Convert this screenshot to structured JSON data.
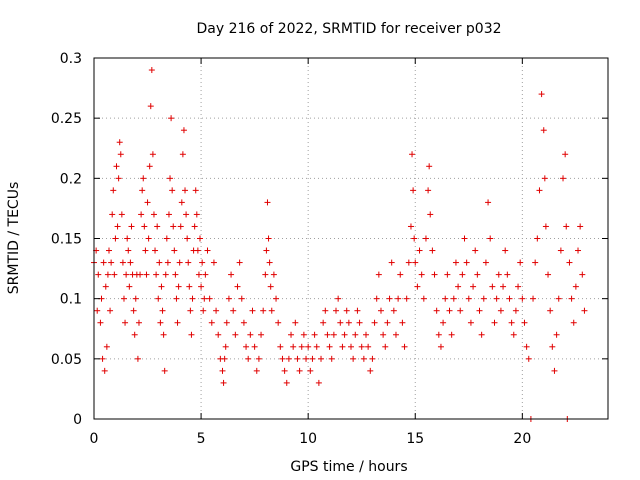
{
  "chart_data": {
    "type": "scatter",
    "title": "Day 216 of 2022, SRMTID for receiver p032",
    "xlabel": "GPS time / hours",
    "ylabel": "SRMTID / TECUs",
    "xlim": [
      0,
      24
    ],
    "ylim": [
      0,
      0.3
    ],
    "xticks": [
      "0",
      "5",
      "10",
      "15",
      "20"
    ],
    "yticks": [
      "0",
      "0.05",
      "0.1",
      "0.15",
      "0.2",
      "0.25",
      "0.3"
    ],
    "grid": true,
    "marker": "plus",
    "color": "#e00000",
    "series": [
      {
        "name": "p032",
        "points": [
          [
            0.0,
            0.13
          ],
          [
            0.1,
            0.14
          ],
          [
            0.15,
            0.09
          ],
          [
            0.2,
            0.12
          ],
          [
            0.3,
            0.08
          ],
          [
            0.35,
            0.1
          ],
          [
            0.4,
            0.05
          ],
          [
            0.45,
            0.13
          ],
          [
            0.5,
            0.04
          ],
          [
            0.55,
            0.11
          ],
          [
            0.6,
            0.06
          ],
          [
            0.65,
            0.12
          ],
          [
            0.7,
            0.14
          ],
          [
            0.75,
            0.09
          ],
          [
            0.8,
            0.13
          ],
          [
            0.85,
            0.17
          ],
          [
            0.9,
            0.19
          ],
          [
            0.95,
            0.12
          ],
          [
            1.0,
            0.15
          ],
          [
            1.05,
            0.21
          ],
          [
            1.1,
            0.16
          ],
          [
            1.15,
            0.2
          ],
          [
            1.2,
            0.23
          ],
          [
            1.25,
            0.22
          ],
          [
            1.3,
            0.17
          ],
          [
            1.35,
            0.13
          ],
          [
            1.4,
            0.1
          ],
          [
            1.45,
            0.08
          ],
          [
            1.5,
            0.12
          ],
          [
            1.55,
            0.15
          ],
          [
            1.6,
            0.14
          ],
          [
            1.65,
            0.11
          ],
          [
            1.7,
            0.13
          ],
          [
            1.75,
            0.16
          ],
          [
            1.8,
            0.12
          ],
          [
            1.85,
            0.09
          ],
          [
            1.9,
            0.07
          ],
          [
            1.95,
            0.1
          ],
          [
            2.0,
            0.12
          ],
          [
            2.05,
            0.05
          ],
          [
            2.1,
            0.08
          ],
          [
            2.15,
            0.12
          ],
          [
            2.2,
            0.17
          ],
          [
            2.25,
            0.19
          ],
          [
            2.3,
            0.2
          ],
          [
            2.35,
            0.16
          ],
          [
            2.4,
            0.14
          ],
          [
            2.45,
            0.12
          ],
          [
            2.5,
            0.18
          ],
          [
            2.55,
            0.15
          ],
          [
            2.6,
            0.21
          ],
          [
            2.65,
            0.26
          ],
          [
            2.7,
            0.29
          ],
          [
            2.75,
            0.22
          ],
          [
            2.8,
            0.17
          ],
          [
            2.85,
            0.14
          ],
          [
            2.9,
            0.12
          ],
          [
            2.95,
            0.16
          ],
          [
            3.0,
            0.1
          ],
          [
            3.05,
            0.13
          ],
          [
            3.1,
            0.08
          ],
          [
            3.15,
            0.11
          ],
          [
            3.2,
            0.09
          ],
          [
            3.25,
            0.07
          ],
          [
            3.3,
            0.04
          ],
          [
            3.35,
            0.12
          ],
          [
            3.4,
            0.15
          ],
          [
            3.45,
            0.13
          ],
          [
            3.5,
            0.17
          ],
          [
            3.55,
            0.2
          ],
          [
            3.6,
            0.25
          ],
          [
            3.65,
            0.19
          ],
          [
            3.7,
            0.16
          ],
          [
            3.75,
            0.14
          ],
          [
            3.8,
            0.12
          ],
          [
            3.85,
            0.1
          ],
          [
            3.9,
            0.08
          ],
          [
            3.95,
            0.11
          ],
          [
            4.0,
            0.13
          ],
          [
            4.05,
            0.16
          ],
          [
            4.1,
            0.18
          ],
          [
            4.15,
            0.22
          ],
          [
            4.2,
            0.24
          ],
          [
            4.25,
            0.19
          ],
          [
            4.3,
            0.17
          ],
          [
            4.35,
            0.15
          ],
          [
            4.4,
            0.13
          ],
          [
            4.45,
            0.11
          ],
          [
            4.5,
            0.09
          ],
          [
            4.55,
            0.07
          ],
          [
            4.6,
            0.1
          ],
          [
            4.65,
            0.14
          ],
          [
            4.7,
            0.16
          ],
          [
            4.75,
            0.19
          ],
          [
            4.8,
            0.17
          ],
          [
            4.85,
            0.14
          ],
          [
            4.9,
            0.12
          ],
          [
            4.95,
            0.15
          ],
          [
            5.0,
            0.11
          ],
          [
            5.05,
            0.13
          ],
          [
            5.1,
            0.09
          ],
          [
            5.15,
            0.1
          ],
          [
            5.2,
            0.12
          ],
          [
            5.3,
            0.14
          ],
          [
            5.4,
            0.1
          ],
          [
            5.5,
            0.08
          ],
          [
            5.6,
            0.13
          ],
          [
            5.7,
            0.09
          ],
          [
            5.8,
            0.07
          ],
          [
            5.9,
            0.05
          ],
          [
            6.0,
            0.04
          ],
          [
            6.05,
            0.03
          ],
          [
            6.1,
            0.05
          ],
          [
            6.15,
            0.06
          ],
          [
            6.2,
            0.08
          ],
          [
            6.3,
            0.1
          ],
          [
            6.4,
            0.12
          ],
          [
            6.5,
            0.09
          ],
          [
            6.6,
            0.07
          ],
          [
            6.7,
            0.11
          ],
          [
            6.8,
            0.13
          ],
          [
            6.9,
            0.1
          ],
          [
            7.0,
            0.08
          ],
          [
            7.1,
            0.06
          ],
          [
            7.2,
            0.05
          ],
          [
            7.3,
            0.07
          ],
          [
            7.4,
            0.09
          ],
          [
            7.5,
            0.06
          ],
          [
            7.6,
            0.04
          ],
          [
            7.7,
            0.05
          ],
          [
            7.8,
            0.07
          ],
          [
            7.9,
            0.09
          ],
          [
            8.0,
            0.12
          ],
          [
            8.05,
            0.14
          ],
          [
            8.1,
            0.18
          ],
          [
            8.15,
            0.15
          ],
          [
            8.2,
            0.13
          ],
          [
            8.25,
            0.11
          ],
          [
            8.3,
            0.09
          ],
          [
            8.4,
            0.12
          ],
          [
            8.5,
            0.1
          ],
          [
            8.6,
            0.08
          ],
          [
            8.7,
            0.06
          ],
          [
            8.8,
            0.05
          ],
          [
            8.9,
            0.04
          ],
          [
            9.0,
            0.03
          ],
          [
            9.1,
            0.05
          ],
          [
            9.2,
            0.07
          ],
          [
            9.3,
            0.06
          ],
          [
            9.4,
            0.08
          ],
          [
            9.5,
            0.05
          ],
          [
            9.6,
            0.04
          ],
          [
            9.7,
            0.06
          ],
          [
            9.8,
            0.07
          ],
          [
            9.9,
            0.05
          ],
          [
            10.0,
            0.06
          ],
          [
            10.1,
            0.04
          ],
          [
            10.2,
            0.05
          ],
          [
            10.3,
            0.07
          ],
          [
            10.4,
            0.06
          ],
          [
            10.5,
            0.03
          ],
          [
            10.6,
            0.05
          ],
          [
            10.7,
            0.08
          ],
          [
            10.8,
            0.09
          ],
          [
            10.9,
            0.07
          ],
          [
            11.0,
            0.06
          ],
          [
            11.1,
            0.05
          ],
          [
            11.2,
            0.07
          ],
          [
            11.3,
            0.09
          ],
          [
            11.4,
            0.1
          ],
          [
            11.5,
            0.08
          ],
          [
            11.6,
            0.06
          ],
          [
            11.7,
            0.07
          ],
          [
            11.8,
            0.09
          ],
          [
            11.9,
            0.08
          ],
          [
            12.0,
            0.06
          ],
          [
            12.1,
            0.05
          ],
          [
            12.2,
            0.07
          ],
          [
            12.3,
            0.09
          ],
          [
            12.4,
            0.08
          ],
          [
            12.5,
            0.06
          ],
          [
            12.6,
            0.05
          ],
          [
            12.7,
            0.07
          ],
          [
            12.8,
            0.06
          ],
          [
            12.9,
            0.04
          ],
          [
            13.0,
            0.05
          ],
          [
            13.1,
            0.08
          ],
          [
            13.2,
            0.1
          ],
          [
            13.3,
            0.12
          ],
          [
            13.4,
            0.09
          ],
          [
            13.5,
            0.07
          ],
          [
            13.6,
            0.06
          ],
          [
            13.7,
            0.08
          ],
          [
            13.8,
            0.1
          ],
          [
            13.9,
            0.13
          ],
          [
            14.0,
            0.09
          ],
          [
            14.1,
            0.07
          ],
          [
            14.2,
            0.1
          ],
          [
            14.3,
            0.12
          ],
          [
            14.4,
            0.08
          ],
          [
            14.5,
            0.06
          ],
          [
            14.6,
            0.1
          ],
          [
            14.7,
            0.13
          ],
          [
            14.8,
            0.16
          ],
          [
            14.85,
            0.22
          ],
          [
            14.9,
            0.19
          ],
          [
            14.95,
            0.15
          ],
          [
            15.0,
            0.13
          ],
          [
            15.1,
            0.11
          ],
          [
            15.2,
            0.14
          ],
          [
            15.3,
            0.12
          ],
          [
            15.4,
            0.1
          ],
          [
            15.5,
            0.15
          ],
          [
            15.6,
            0.19
          ],
          [
            15.65,
            0.21
          ],
          [
            15.7,
            0.17
          ],
          [
            15.8,
            0.14
          ],
          [
            15.9,
            0.12
          ],
          [
            16.0,
            0.09
          ],
          [
            16.1,
            0.07
          ],
          [
            16.2,
            0.06
          ],
          [
            16.3,
            0.08
          ],
          [
            16.4,
            0.1
          ],
          [
            16.5,
            0.12
          ],
          [
            16.6,
            0.09
          ],
          [
            16.7,
            0.07
          ],
          [
            16.8,
            0.1
          ],
          [
            16.9,
            0.13
          ],
          [
            17.0,
            0.11
          ],
          [
            17.1,
            0.09
          ],
          [
            17.2,
            0.12
          ],
          [
            17.3,
            0.15
          ],
          [
            17.4,
            0.13
          ],
          [
            17.5,
            0.1
          ],
          [
            17.6,
            0.08
          ],
          [
            17.7,
            0.11
          ],
          [
            17.8,
            0.14
          ],
          [
            17.9,
            0.12
          ],
          [
            18.0,
            0.09
          ],
          [
            18.1,
            0.07
          ],
          [
            18.2,
            0.1
          ],
          [
            18.3,
            0.13
          ],
          [
            18.4,
            0.18
          ],
          [
            18.5,
            0.15
          ],
          [
            18.6,
            0.11
          ],
          [
            18.7,
            0.08
          ],
          [
            18.8,
            0.1
          ],
          [
            18.9,
            0.12
          ],
          [
            19.0,
            0.09
          ],
          [
            19.1,
            0.11
          ],
          [
            19.2,
            0.14
          ],
          [
            19.3,
            0.12
          ],
          [
            19.4,
            0.1
          ],
          [
            19.5,
            0.08
          ],
          [
            19.6,
            0.07
          ],
          [
            19.7,
            0.09
          ],
          [
            19.8,
            0.11
          ],
          [
            19.9,
            0.13
          ],
          [
            20.0,
            0.1
          ],
          [
            20.1,
            0.08
          ],
          [
            20.2,
            0.06
          ],
          [
            20.3,
            0.05
          ],
          [
            20.4,
            0.0
          ],
          [
            20.5,
            0.1
          ],
          [
            20.6,
            0.13
          ],
          [
            20.7,
            0.15
          ],
          [
            20.8,
            0.19
          ],
          [
            20.9,
            0.27
          ],
          [
            21.0,
            0.24
          ],
          [
            21.05,
            0.2
          ],
          [
            21.1,
            0.16
          ],
          [
            21.2,
            0.12
          ],
          [
            21.3,
            0.09
          ],
          [
            21.4,
            0.06
          ],
          [
            21.5,
            0.04
          ],
          [
            21.6,
            0.07
          ],
          [
            21.7,
            0.1
          ],
          [
            21.8,
            0.14
          ],
          [
            21.9,
            0.2
          ],
          [
            22.0,
            0.22
          ],
          [
            22.05,
            0.16
          ],
          [
            22.1,
            0.0
          ],
          [
            22.2,
            0.13
          ],
          [
            22.3,
            0.1
          ],
          [
            22.4,
            0.08
          ],
          [
            22.5,
            0.11
          ],
          [
            22.6,
            0.14
          ],
          [
            22.7,
            0.16
          ],
          [
            22.8,
            0.12
          ],
          [
            22.9,
            0.09
          ]
        ]
      }
    ]
  }
}
